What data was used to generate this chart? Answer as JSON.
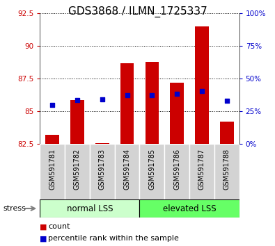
{
  "title": "GDS3868 / ILMN_1725337",
  "categories": [
    "GSM591781",
    "GSM591782",
    "GSM591783",
    "GSM591784",
    "GSM591785",
    "GSM591786",
    "GSM591787",
    "GSM591788"
  ],
  "bar_bottoms": 82.5,
  "bar_tops": [
    83.2,
    85.85,
    82.55,
    88.7,
    88.8,
    87.2,
    91.5,
    84.2
  ],
  "percentile_values": [
    85.5,
    85.85,
    85.9,
    86.25,
    86.25,
    86.35,
    86.55,
    85.8
  ],
  "ylim_left": [
    82.5,
    92.5
  ],
  "ylim_right": [
    0,
    100
  ],
  "yticks_left": [
    82.5,
    85.0,
    87.5,
    90.0,
    92.5
  ],
  "ytick_labels_left": [
    "82.5",
    "85",
    "87.5",
    "90",
    "92.5"
  ],
  "yticks_right": [
    0,
    25,
    50,
    75,
    100
  ],
  "ytick_labels_right": [
    "0%",
    "25%",
    "50%",
    "75%",
    "100%"
  ],
  "bar_color": "#cc0000",
  "percentile_color": "#0000cc",
  "group1_label": "normal LSS",
  "group2_label": "elevated LSS",
  "group1_color": "#ccffcc",
  "group2_color": "#66ff66",
  "stress_label": "stress",
  "legend_count": "count",
  "legend_percentile": "percentile rank within the sample",
  "bar_width": 0.55,
  "title_fontsize": 11,
  "axis_tick_fontsize": 7.5,
  "xticklabel_fontsize": 7,
  "group_label_fontsize": 8.5,
  "legend_fontsize": 8,
  "dotted_grid_color": "#000000",
  "left_tick_color": "#cc0000",
  "right_tick_color": "#0000cc",
  "gray_bg": "#d3d3d3",
  "plot_bg": "#ffffff"
}
